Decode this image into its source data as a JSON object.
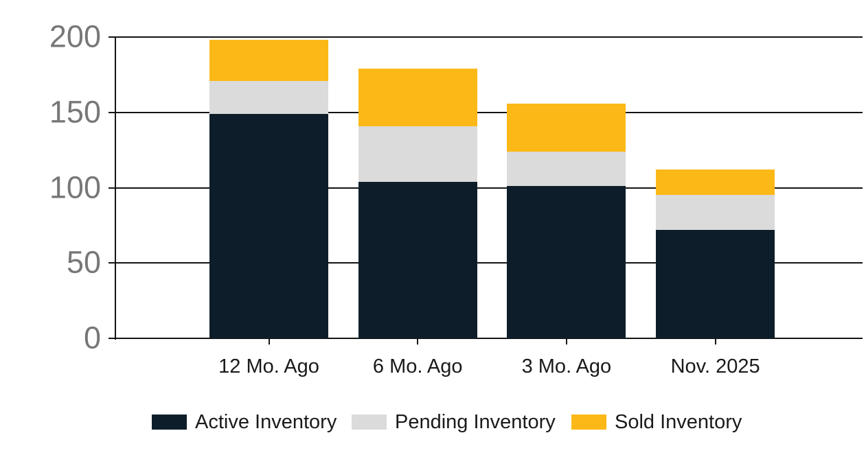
{
  "chart_data": {
    "type": "bar",
    "stacked": true,
    "title": "",
    "xlabel": "",
    "ylabel": "",
    "categories": [
      "12 Mo. Ago",
      "6 Mo. Ago",
      "3 Mo. Ago",
      "Nov. 2025"
    ],
    "series": [
      {
        "name": "Active Inventory",
        "color": "#0D1E2A",
        "values": [
          149,
          104,
          101,
          72
        ]
      },
      {
        "name": "Pending Inventory",
        "color": "#DBDBDB",
        "values": [
          22,
          37,
          23,
          23
        ]
      },
      {
        "name": "Sold Inventory",
        "color": "#FCB817",
        "values": [
          27,
          38,
          32,
          17
        ]
      }
    ],
    "stack_totals": [
      198,
      179,
      156,
      112
    ],
    "y_ticks": [
      0,
      50,
      100,
      150,
      200
    ],
    "ylim": [
      0,
      200
    ],
    "grid": "horizontal",
    "legend_position": "bottom"
  },
  "colors": {
    "background": "#FFFFFF",
    "grid_line": "#141414",
    "y_tick_label": "#777777",
    "x_tick_label": "#1A1A1A",
    "legend_text": "#1A1A1A"
  }
}
